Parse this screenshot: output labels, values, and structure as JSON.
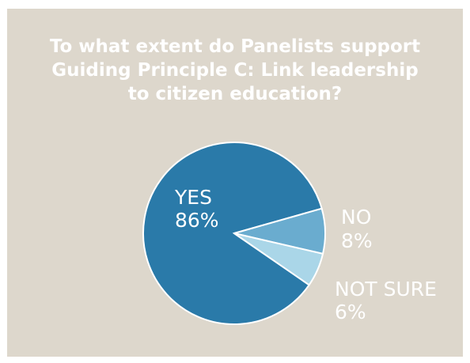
{
  "chart_data": {
    "type": "pie",
    "title_lines": [
      "To what extent do Panelists support",
      "Guiding Principle C: Link leadership",
      "to citizen education?"
    ],
    "slices": [
      {
        "label": "YES",
        "value": 86,
        "value_text": "86%",
        "color": "#2a7aa9",
        "label_color": "#ffffff"
      },
      {
        "label": "NO",
        "value": 8,
        "value_text": "8%",
        "color": "#6aaccf",
        "label_color": "#ffffff"
      },
      {
        "label": "NOT SURE",
        "value": 6,
        "value_text": "6%",
        "color": "#aad6e8",
        "label_color": "#ffffff"
      }
    ],
    "background": "#ddd7cc",
    "legend": "none"
  }
}
